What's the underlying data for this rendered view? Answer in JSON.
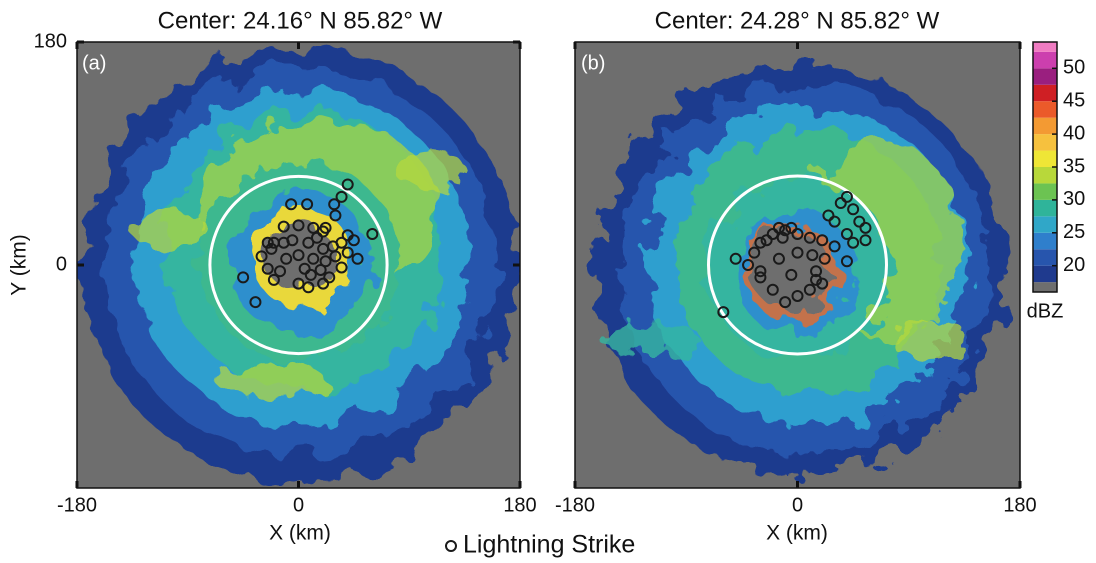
{
  "chart_data": [
    {
      "type": "scatter",
      "title": "Center:  24.16° N 85.82° W",
      "panel_label": "(a)",
      "xlabel": "X (km)",
      "ylabel": "Y (km)",
      "xlim": [
        -180,
        180
      ],
      "ylim": [
        -180,
        180
      ],
      "xticks": [
        -180,
        0,
        180
      ],
      "yticks": [
        0,
        180
      ],
      "ring_radius": 72,
      "series": [
        {
          "name": "Lightning Strike",
          "color": "#1a1a1a",
          "x": [
            -6,
            7,
            29,
            30,
            -12,
            0,
            12,
            20,
            22,
            40,
            60,
            45,
            35,
            -20,
            -25,
            -22,
            -12,
            -5,
            8,
            15,
            20,
            28,
            -30,
            -10,
            0,
            12,
            22,
            30,
            40,
            48,
            -25,
            -15,
            5,
            10,
            18,
            25,
            35,
            -45,
            -20,
            0,
            8,
            20,
            -35,
            40,
            35
          ],
          "y": [
            49,
            49,
            49,
            40,
            31,
            32,
            30,
            27,
            30,
            24,
            25,
            20,
            18,
            18,
            18,
            13,
            18,
            20,
            18,
            22,
            13,
            15,
            7,
            5,
            8,
            5,
            3,
            7,
            10,
            5,
            -3,
            -5,
            -3,
            -8,
            -4,
            -10,
            -2,
            -10,
            -12,
            -15,
            -18,
            -15,
            -30,
            65,
            55
          ]
        }
      ]
    },
    {
      "type": "scatter",
      "title": "Center:  24.28° N 85.82° W",
      "panel_label": "(b)",
      "xlabel": "X (km)",
      "xlim": [
        -180,
        180
      ],
      "ylim": [
        -180,
        180
      ],
      "xticks": [
        -180,
        0,
        180
      ],
      "ring_radius": 72,
      "series": [
        {
          "color": "#1a1a1a",
          "x": [
            40,
            35,
            45,
            25,
            30,
            50,
            55,
            40,
            -15,
            -10,
            -5,
            -20,
            -25,
            -30,
            -12,
            0,
            10,
            20,
            30,
            45,
            55,
            -35,
            -50,
            -40,
            -30,
            -15,
            0,
            12,
            22,
            40,
            -30,
            -5,
            15,
            20,
            10,
            0,
            -20,
            -10,
            -60,
            15
          ],
          "y": [
            55,
            50,
            45,
            40,
            35,
            35,
            30,
            25,
            30,
            28,
            30,
            25,
            20,
            18,
            22,
            25,
            22,
            20,
            15,
            18,
            20,
            10,
            5,
            0,
            -5,
            5,
            10,
            8,
            5,
            3,
            -10,
            -8,
            -12,
            -15,
            -20,
            -25,
            -20,
            -30,
            -38,
            -5
          ]
        }
      ]
    },
    {
      "type": "colorbar",
      "label": "dBZ",
      "lim": [
        16,
        54
      ],
      "ticks": [
        20,
        25,
        30,
        35,
        40,
        45,
        50
      ],
      "levels": [
        16,
        17.5,
        20,
        22.5,
        25,
        27.5,
        30,
        32.5,
        35,
        37.5,
        40,
        42.5,
        45,
        47.5,
        50,
        52.5,
        54
      ],
      "colors": [
        "#6e6e6e",
        "#1f3a8e",
        "#2755ad",
        "#2f7fcc",
        "#30a7c8",
        "#2fb49a",
        "#6cc352",
        "#b8d83a",
        "#efe636",
        "#f6c13e",
        "#f39a33",
        "#eb5a2a",
        "#cf1f24",
        "#9a1f7f",
        "#cc3fae",
        "#f07cc2"
      ]
    }
  ]
}
